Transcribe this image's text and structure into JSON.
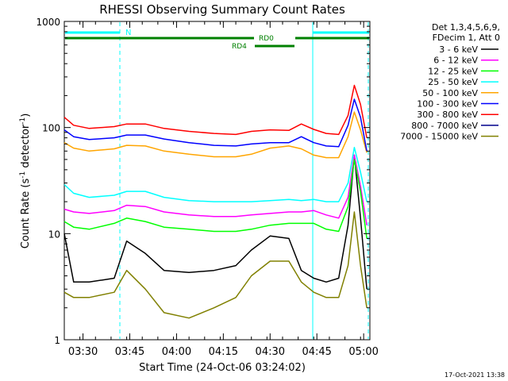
{
  "chart_data": {
    "type": "line",
    "title": "RHESSI Observing Summary Count Rates",
    "xlabel": "Start Time (24-Oct-06 03:24:02)",
    "ylabel_prefix": "Count Rate (s",
    "ylabel_sup1": "-1",
    "ylabel_mid": " detector",
    "ylabel_sup2": "-1",
    "ylabel_suffix": ")",
    "y_scale": "log",
    "ylim": [
      1,
      1000
    ],
    "xlim_minutes": [
      0,
      98
    ],
    "x_ticks": [
      {
        "label": "03:30",
        "minute": 6
      },
      {
        "label": "03:45",
        "minute": 21
      },
      {
        "label": "04:00",
        "minute": 36
      },
      {
        "label": "04:15",
        "minute": 51
      },
      {
        "label": "04:30",
        "minute": 66
      },
      {
        "label": "04:45",
        "minute": 81
      },
      {
        "label": "05:00",
        "minute": 96
      }
    ],
    "y_ticks": [
      {
        "label": "1",
        "value": 1
      },
      {
        "label": "10",
        "value": 10
      },
      {
        "label": "100",
        "value": 100
      },
      {
        "label": "1000",
        "value": 1000
      }
    ],
    "legend_header": [
      "Det 1,3,4,5,6,9,",
      "FDecim 1, Att 0"
    ],
    "series": [
      {
        "name": "3 - 6 keV",
        "color": "#000000",
        "x": [
          0,
          3,
          8,
          16,
          20,
          26,
          32,
          40,
          48,
          55,
          60,
          66,
          72,
          76,
          80,
          84,
          88,
          91,
          93,
          95,
          97
        ],
        "y": [
          10,
          3.5,
          3.5,
          3.8,
          8.5,
          6.5,
          4.5,
          4.3,
          4.5,
          5,
          7,
          9.5,
          9,
          4.5,
          3.8,
          3.5,
          3.8,
          12,
          55,
          14,
          3
        ]
      },
      {
        "name": "6 - 12 keV",
        "color": "#ff00ff",
        "x": [
          0,
          3,
          8,
          16,
          20,
          26,
          32,
          40,
          48,
          55,
          60,
          66,
          72,
          76,
          80,
          84,
          88,
          91,
          93,
          95,
          97
        ],
        "y": [
          17,
          16,
          15.5,
          16.5,
          18.5,
          18,
          16,
          15,
          14.5,
          14.5,
          15,
          15.5,
          16,
          16,
          16.5,
          15,
          14,
          22,
          55,
          28,
          12
        ]
      },
      {
        "name": "12 - 25 keV",
        "color": "#00ff00",
        "x": [
          0,
          3,
          8,
          16,
          20,
          26,
          32,
          40,
          48,
          55,
          60,
          66,
          72,
          76,
          80,
          84,
          88,
          91,
          93,
          95,
          97
        ],
        "y": [
          13,
          11.5,
          11,
          12.5,
          14,
          13,
          11.5,
          11,
          10.5,
          10.5,
          11,
          12,
          12.5,
          12.5,
          12.5,
          11,
          10.5,
          18,
          50,
          25,
          9
        ]
      },
      {
        "name": "25 - 50 keV",
        "color": "#00ffff",
        "x": [
          0,
          3,
          8,
          16,
          20,
          26,
          32,
          40,
          48,
          55,
          60,
          66,
          72,
          76,
          80,
          84,
          88,
          91,
          93,
          95,
          97
        ],
        "y": [
          29,
          24,
          22,
          23,
          25,
          25,
          22,
          20.5,
          20,
          20,
          20,
          20.5,
          21,
          20.5,
          21,
          20,
          20,
          30,
          65,
          38,
          20
        ]
      },
      {
        "name": "50 - 100 keV",
        "color": "#ffa500",
        "x": [
          0,
          3,
          8,
          16,
          20,
          26,
          32,
          40,
          48,
          55,
          60,
          66,
          72,
          76,
          80,
          84,
          88,
          91,
          93,
          95,
          97
        ],
        "y": [
          72,
          64,
          60,
          63,
          68,
          67,
          60,
          56,
          53,
          53,
          56,
          64,
          67,
          63,
          55,
          52,
          52,
          82,
          140,
          95,
          58
        ]
      },
      {
        "name": "100 - 300 keV",
        "color": "#0000ff",
        "x": [
          0,
          3,
          8,
          16,
          20,
          26,
          32,
          40,
          48,
          55,
          60,
          66,
          72,
          76,
          80,
          84,
          88,
          91,
          93,
          95,
          97
        ],
        "y": [
          95,
          82,
          77,
          80,
          85,
          85,
          78,
          72,
          68,
          67,
          70,
          72,
          72,
          82,
          72,
          67,
          66,
          105,
          185,
          125,
          60
        ]
      },
      {
        "name": "300 - 800 keV",
        "color": "#ff0000",
        "x": [
          0,
          3,
          8,
          16,
          20,
          26,
          32,
          40,
          48,
          55,
          60,
          66,
          72,
          76,
          80,
          84,
          88,
          91,
          93,
          95,
          97
        ],
        "y": [
          125,
          105,
          98,
          102,
          108,
          108,
          98,
          92,
          88,
          86,
          92,
          95,
          94,
          108,
          96,
          88,
          86,
          130,
          250,
          165,
          80
        ]
      },
      {
        "name": "800 - 7000 keV",
        "color": "#00008b",
        "x": [],
        "y": []
      },
      {
        "name": "7000 - 15000 keV",
        "color": "#808000",
        "x": [
          0,
          3,
          8,
          16,
          20,
          26,
          32,
          40,
          48,
          55,
          60,
          66,
          72,
          76,
          80,
          84,
          88,
          91,
          93,
          95,
          97
        ],
        "y": [
          2.8,
          2.5,
          2.5,
          2.8,
          4.5,
          3,
          1.8,
          1.6,
          2,
          2.5,
          4,
          5.5,
          5.5,
          3.5,
          2.8,
          2.5,
          2.5,
          5,
          16,
          5,
          2
        ]
      }
    ],
    "annotations": {
      "attenuator_label": "N",
      "decimation_labels": [
        "RD0",
        "RD4"
      ],
      "footer": "17-Oct-2021 13:38"
    },
    "grid": false,
    "legend_position": "right"
  }
}
